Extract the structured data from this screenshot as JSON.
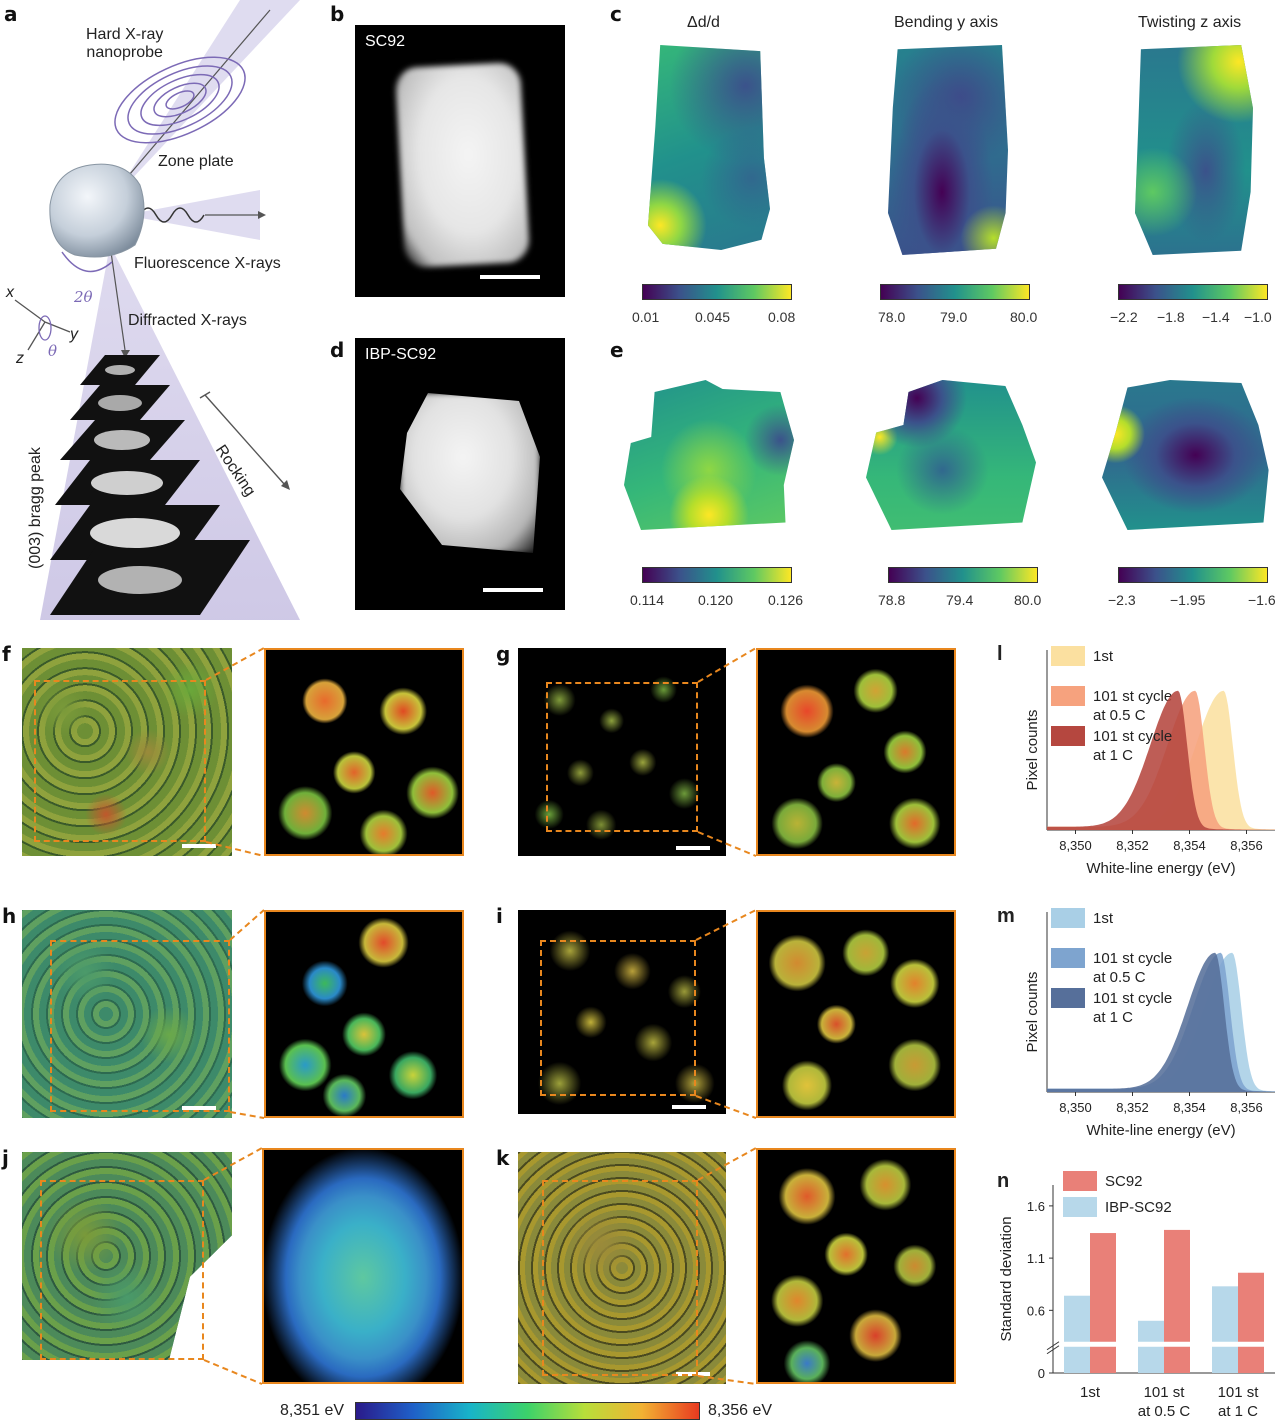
{
  "panels": {
    "a": {
      "label": "a",
      "probe": "Hard X-ray\nnanoprobe",
      "zone_plate": "Zone plate",
      "fluorescence": "Fluorescence X-rays",
      "diffracted": "Diffracted X-rays",
      "two_theta": "2θ",
      "theta": "θ",
      "axis_x": "x",
      "axis_y": "y",
      "axis_z": "z",
      "bragg": "(003) bragg peak",
      "rocking": "Rocking"
    },
    "b": {
      "label": "b",
      "title": "SC92"
    },
    "c": {
      "label": "c",
      "maps": [
        {
          "title": "Δd/d",
          "ticks": [
            "0.01",
            "0.045",
            "0.08"
          ]
        },
        {
          "title": "Bending y axis",
          "ticks": [
            "78.0",
            "79.0",
            "80.0"
          ]
        },
        {
          "title": "Twisting z axis",
          "ticks": [
            "−2.2",
            "−1.8",
            "−1.4",
            "−1.0"
          ]
        }
      ]
    },
    "d": {
      "label": "d",
      "title": "IBP-SC92"
    },
    "e": {
      "label": "e",
      "maps": [
        {
          "ticks": [
            "0.114",
            "0.120",
            "0.126"
          ]
        },
        {
          "ticks": [
            "78.8",
            "79.4",
            "80.0"
          ]
        },
        {
          "ticks": [
            "−2.3",
            "−1.95",
            "−1.6"
          ]
        }
      ]
    },
    "tomo_labels": [
      "f",
      "g",
      "h",
      "i",
      "j",
      "k"
    ],
    "energy_bar": {
      "min": "8,351 eV",
      "max": "8,356 eV"
    }
  },
  "chart_data": [
    {
      "id": "l",
      "type": "area",
      "label": "l",
      "xlabel": "White-line energy (eV)",
      "ylabel": "Pixel counts",
      "xticks": [
        "8,350",
        "8,352",
        "8,354",
        "8,356"
      ],
      "xlim": [
        8349,
        8357
      ],
      "legend_position": "top-left",
      "series": [
        {
          "name": "1st",
          "color": "#fbe0a0",
          "peak_eV": 8355.2
        },
        {
          "name": "101 st cycle\nat 0.5 C",
          "color": "#f6a27e",
          "peak_eV": 8354.2
        },
        {
          "name": "101 st cycle\nat 1 C",
          "color": "#b5473f",
          "peak_eV": 8353.6
        }
      ]
    },
    {
      "id": "m",
      "type": "area",
      "label": "m",
      "xlabel": "White-line energy (eV)",
      "ylabel": "Pixel counts",
      "xticks": [
        "8,350",
        "8,352",
        "8,354",
        "8,356"
      ],
      "xlim": [
        8349,
        8357
      ],
      "legend_position": "top-left",
      "series": [
        {
          "name": "1st",
          "color": "#a9cfe6",
          "peak_eV": 8355.5
        },
        {
          "name": "101 st cycle\nat 0.5 C",
          "color": "#7ea4cf",
          "peak_eV": 8355.1
        },
        {
          "name": "101 st cycle\nat 1 C",
          "color": "#566f9a",
          "peak_eV": 8354.9
        }
      ]
    },
    {
      "id": "n",
      "type": "bar",
      "label": "n",
      "ylabel": "Standard deviation",
      "yticks": [
        "0",
        "0.6",
        "1.1",
        "1.6"
      ],
      "ylim": [
        0,
        1.8
      ],
      "categories": [
        "1st",
        "101 st\nat 0.5 C",
        "101 st\nat 1 C"
      ],
      "legend_position": "top-left",
      "series": [
        {
          "name": "IBP-SC92",
          "color": "#b7d8ea",
          "values": [
            0.74,
            0.5,
            0.83
          ]
        },
        {
          "name": "SC92",
          "color": "#e98078",
          "values": [
            1.34,
            1.37,
            0.96
          ]
        }
      ]
    }
  ]
}
